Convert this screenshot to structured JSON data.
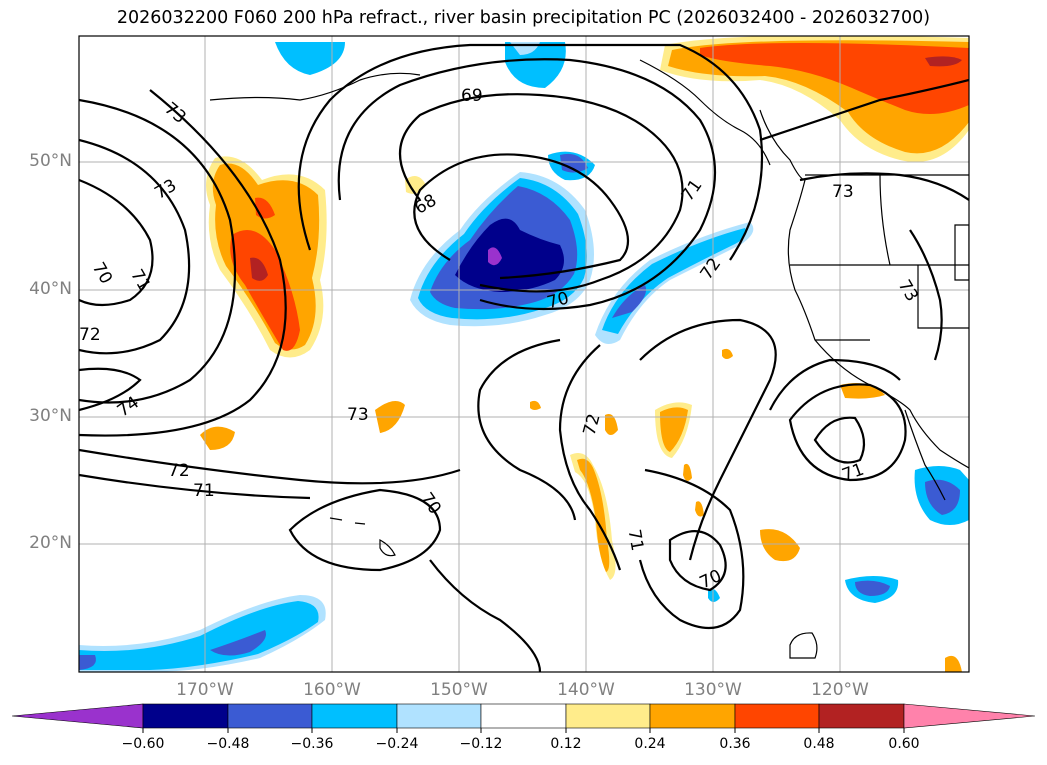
{
  "title": "2026032200 F060 200 hPa refract., river basin precipitation PC (2026032400 - 2026032700)",
  "lat_labels": [
    "50°N",
    "40°N",
    "30°N",
    "20°N"
  ],
  "lon_labels": [
    "170°W",
    "160°W",
    "150°W",
    "140°W",
    "130°W",
    "120°W"
  ],
  "contour_labels": [
    "73",
    "73",
    "70",
    "71",
    "72",
    "74",
    "69",
    "68",
    "71",
    "72",
    "73",
    "73",
    "70",
    "73",
    "72",
    "71",
    "72",
    "71",
    "70",
    "70",
    "71"
  ],
  "colorbar": {
    "ticks": [
      "−0.60",
      "−0.48",
      "−0.36",
      "−0.24",
      "−0.12",
      "0.12",
      "0.24",
      "0.36",
      "0.48",
      "0.60"
    ],
    "colors": [
      "#9a32cd",
      "#00008b",
      "#3b5bd3",
      "#00bfff",
      "#b0e2ff",
      "#ffffff",
      "#ffec8b",
      "#ffa500",
      "#ff4500",
      "#b22222",
      "#ff82ab"
    ]
  }
}
